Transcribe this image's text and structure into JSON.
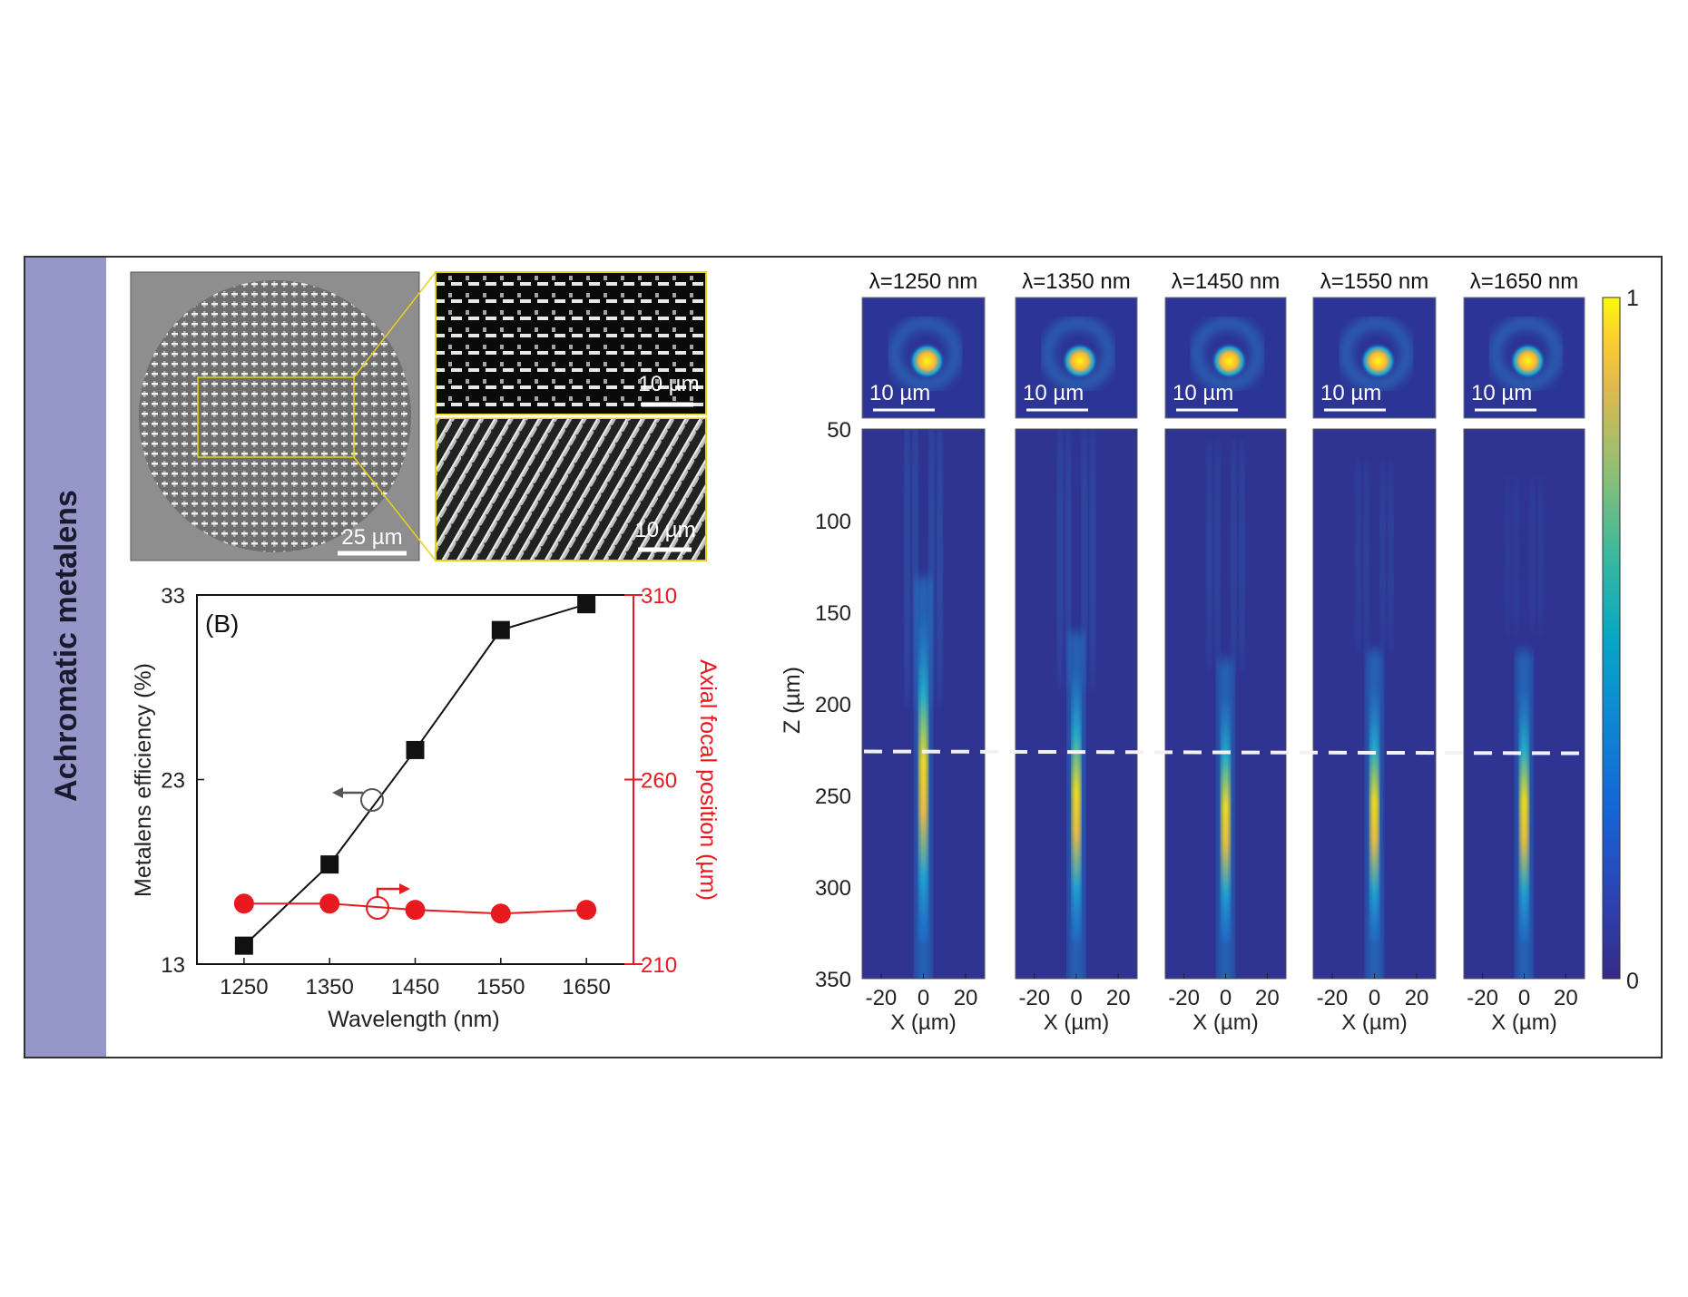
{
  "panel": {
    "side_title": "Achromatic metalens",
    "sidebar_color": "#9597c8",
    "sem": {
      "main_scale": "25 µm",
      "inset_top_scale": "10 µm",
      "inset_bottom_scale": "10 µm"
    }
  },
  "chart_data": [
    {
      "type": "line",
      "panel_label": "(B)",
      "xlabel": "Wavelength (nm)",
      "ylabel": "Metalens efficiency (%)",
      "y2label": "Axial focal position (µm)",
      "x": [
        1250,
        1350,
        1450,
        1550,
        1650
      ],
      "xticks": [
        "1250",
        "1350",
        "1450",
        "1550",
        "1650"
      ],
      "yticks": [
        "13",
        "23",
        "33"
      ],
      "y2ticks": [
        "210",
        "260",
        "310"
      ],
      "ylim": [
        13,
        33
      ],
      "y2lim": [
        210,
        310
      ],
      "grid": false,
      "series": [
        {
          "axis": "left",
          "marker": "square",
          "color": "#111111",
          "values": [
            14.0,
            18.4,
            24.6,
            31.1,
            32.5
          ]
        },
        {
          "axis": "right",
          "marker": "circle",
          "color": "#e8191f",
          "values": [
            226.4,
            226.4,
            224.7,
            223.7,
            224.7
          ]
        }
      ]
    },
    {
      "type": "heatmap",
      "xlabel": "X (µm)",
      "ylabel": "Z (µm)",
      "xticks": [
        "-20",
        "0",
        "20"
      ],
      "yticks": [
        "50",
        "100",
        "150",
        "200",
        "250",
        "300",
        "350"
      ],
      "ylim": [
        50,
        350
      ],
      "xlim": [
        -29,
        29
      ],
      "panels": [
        {
          "title": "λ=1250 nm",
          "spot_scale": "10 µm"
        },
        {
          "title": "λ=1350 nm",
          "spot_scale": "10 µm"
        },
        {
          "title": "λ=1450 nm",
          "spot_scale": "10 µm"
        },
        {
          "title": "λ=1550 nm",
          "spot_scale": "10 µm"
        },
        {
          "title": "λ=1650 nm",
          "spot_scale": "10 µm"
        }
      ],
      "focal_plane_z": 226,
      "colorbar": {
        "min_label": "0",
        "max_label": "1",
        "colormap": "parula"
      }
    }
  ]
}
